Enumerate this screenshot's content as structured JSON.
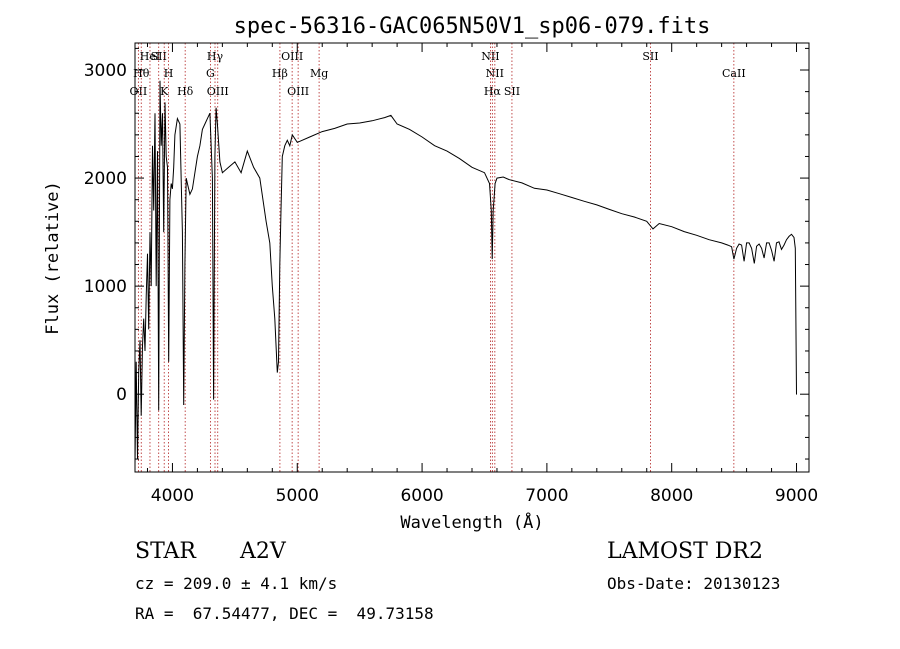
{
  "chart_data": {
    "type": "line",
    "title": "spec-56316-GAC065N50V1_sp06-079.fits",
    "xlabel": "Wavelength (Å)",
    "ylabel": "Flux (relative)",
    "xlim": [
      3700,
      9100
    ],
    "ylim": [
      -720,
      3250
    ],
    "xticks": [
      4000,
      5000,
      6000,
      7000,
      8000,
      9000
    ],
    "yticks": [
      0,
      1000,
      2000,
      3000
    ],
    "grid": false,
    "series": [
      {
        "color": "#000000",
        "x": [
          3700,
          3710,
          3720,
          3730,
          3740,
          3750,
          3760,
          3770,
          3780,
          3790,
          3800,
          3810,
          3820,
          3830,
          3840,
          3850,
          3860,
          3870,
          3880,
          3890,
          3900,
          3910,
          3920,
          3930,
          3940,
          3950,
          3960,
          3970,
          3980,
          3990,
          4000,
          4010,
          4020,
          4040,
          4060,
          4080,
          4090,
          4100,
          4110,
          4120,
          4140,
          4160,
          4180,
          4200,
          4220,
          4240,
          4260,
          4280,
          4300,
          4320,
          4330,
          4340,
          4350,
          4360,
          4380,
          4400,
          4450,
          4500,
          4550,
          4600,
          4650,
          4700,
          4750,
          4780,
          4800,
          4820,
          4840,
          4850,
          4860,
          4870,
          4880,
          4900,
          4920,
          4940,
          4960,
          5000,
          5100,
          5200,
          5300,
          5400,
          5500,
          5600,
          5700,
          5750,
          5800,
          5900,
          6000,
          6100,
          6200,
          6300,
          6400,
          6500,
          6540,
          6555,
          6562,
          6570,
          6585,
          6600,
          6650,
          6700,
          6800,
          6900,
          7000,
          7100,
          7200,
          7300,
          7400,
          7500,
          7600,
          7700,
          7800,
          7850,
          7900,
          8000,
          8100,
          8200,
          8300,
          8400,
          8450,
          8480,
          8498,
          8520,
          8540,
          8560,
          8580,
          8600,
          8620,
          8640,
          8662,
          8680,
          8700,
          8720,
          8740,
          8760,
          8780,
          8800,
          8820,
          8840,
          8860,
          8880,
          8900,
          8920,
          8940,
          8960,
          8980,
          8990,
          9000,
          9001
        ],
        "y": [
          -650,
          300,
          -600,
          200,
          500,
          -200,
          450,
          700,
          400,
          900,
          1300,
          600,
          1500,
          1000,
          2300,
          1700,
          2600,
          1000,
          2250,
          -150,
          2900,
          2300,
          2600,
          1500,
          2700,
          2200,
          2100,
          300,
          1800,
          1950,
          1900,
          2100,
          2400,
          2550,
          2500,
          1500,
          -100,
          1200,
          2000,
          1950,
          1850,
          1900,
          2050,
          2200,
          2300,
          2450,
          2500,
          2550,
          2600,
          2000,
          -50,
          2200,
          2650,
          2500,
          2150,
          2050,
          2100,
          2150,
          2050,
          2250,
          2100,
          2000,
          1600,
          1400,
          1000,
          700,
          200,
          300,
          1200,
          1700,
          2200,
          2300,
          2350,
          2300,
          2400,
          2330,
          2380,
          2430,
          2460,
          2500,
          2510,
          2530,
          2560,
          2580,
          2500,
          2450,
          2380,
          2300,
          2250,
          2180,
          2100,
          2050,
          1950,
          1700,
          1250,
          1700,
          1950,
          2000,
          2010,
          1985,
          1955,
          1905,
          1890,
          1855,
          1820,
          1785,
          1752,
          1710,
          1670,
          1640,
          1600,
          1530,
          1580,
          1550,
          1505,
          1470,
          1430,
          1400,
          1380,
          1365,
          1250,
          1350,
          1390,
          1380,
          1230,
          1400,
          1400,
          1350,
          1210,
          1370,
          1390,
          1350,
          1260,
          1400,
          1400,
          1330,
          1230,
          1400,
          1410,
          1340,
          1380,
          1430,
          1460,
          1480,
          1450,
          1350,
          0,
          0
        ]
      }
    ],
    "line_markers": [
      {
        "wl": 3727,
        "label": "OII",
        "row": 3
      },
      {
        "wl": 3750,
        "label": "Hθ",
        "row": 2
      },
      {
        "wl": 3820,
        "label": "HeI",
        "row": 1
      },
      {
        "wl": 3890,
        "label": "SII",
        "row": 1
      },
      {
        "wl": 3934,
        "label": "K",
        "row": 3
      },
      {
        "wl": 3969,
        "label": "H",
        "row": 2
      },
      {
        "wl": 4102,
        "label": "Hδ",
        "row": 3
      },
      {
        "wl": 4341,
        "label": "Hγ",
        "row": 1
      },
      {
        "wl": 4304,
        "label": "G",
        "row": 2
      },
      {
        "wl": 4363,
        "label": "OIII",
        "row": 3
      },
      {
        "wl": 4861,
        "label": "Hβ",
        "row": 2
      },
      {
        "wl": 4959,
        "label": "OIII",
        "row": 1
      },
      {
        "wl": 5007,
        "label": "OIII",
        "row": 3
      },
      {
        "wl": 5175,
        "label": "Mg",
        "row": 2
      },
      {
        "wl": 6548,
        "label": "NII",
        "row": 1
      },
      {
        "wl": 6583,
        "label": "NII",
        "row": 2
      },
      {
        "wl": 6563,
        "label": "Hα",
        "row": 3
      },
      {
        "wl": 6720,
        "label": "SII",
        "row": 3
      },
      {
        "wl": 7830,
        "label": "SII",
        "row": 1
      },
      {
        "wl": 8498,
        "label": "CaII",
        "row": 2
      }
    ]
  },
  "info": {
    "object_class": "STAR",
    "subclass": "A2V",
    "survey": "LAMOST DR2",
    "redshift": "cz = 209.0 ± 4.1 km/s",
    "obs_date": "Obs-Date: 20130123",
    "coords": "RA =  67.54477, DEC =  49.73158"
  }
}
